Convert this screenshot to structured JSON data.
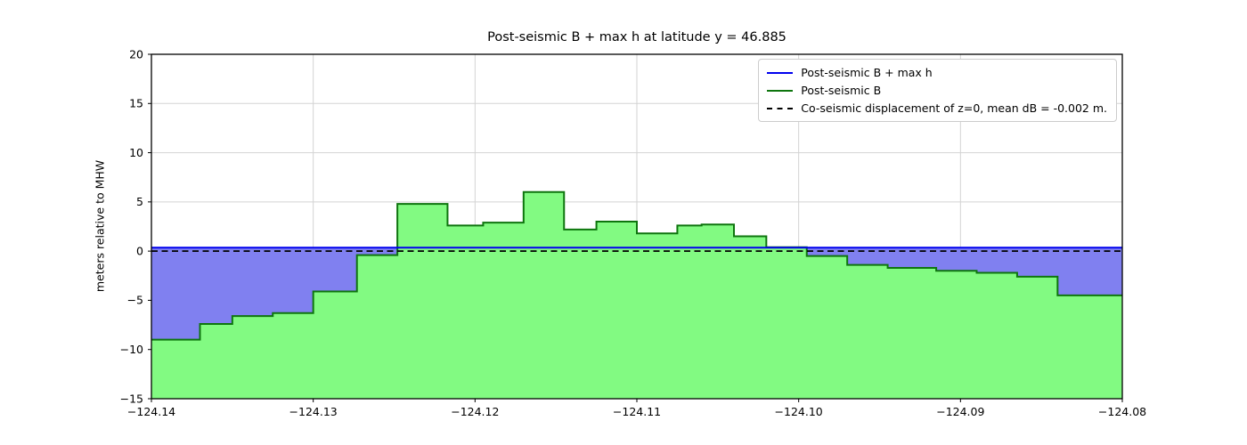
{
  "chart_data": {
    "type": "area",
    "title": "Post-seismic B + max h at latitude y = 46.885",
    "xlabel": "",
    "ylabel": "meters relative to MHW",
    "xlim": [
      -124.14,
      -124.08
    ],
    "ylim": [
      -15,
      20
    ],
    "grid": true,
    "legend_position": "upper right",
    "x_ticks": [
      -124.14,
      -124.13,
      -124.12,
      -124.11,
      -124.1,
      -124.09,
      -124.08
    ],
    "x_tick_labels": [
      "−124.14",
      "−124.13",
      "−124.12",
      "−124.11",
      "−124.10",
      "−124.09",
      "−124.08"
    ],
    "y_ticks": [
      20,
      15,
      10,
      5,
      0,
      -5,
      -10,
      -15
    ],
    "y_tick_labels": [
      "20",
      "15",
      "10",
      "5",
      "0",
      "−5",
      "−10",
      "−15"
    ],
    "colors": {
      "blue_line": "#0000ee",
      "blue_fill": "#8080f0",
      "green_line": "#0e750e",
      "green_fill": "#82fa82",
      "dashed_line": "#000000",
      "grid": "#d3d3d3",
      "spine": "#000000"
    },
    "series": [
      {
        "name": "Post-seismic B + max h",
        "type": "hline",
        "value": 0.35
      },
      {
        "name": "Post-seismic B",
        "type": "steps",
        "segments": [
          [
            -124.14,
            -124.137,
            -9.0
          ],
          [
            -124.137,
            -124.135,
            -7.4
          ],
          [
            -124.135,
            -124.1325,
            -6.6
          ],
          [
            -124.1325,
            -124.13,
            -6.3
          ],
          [
            -124.13,
            -124.1273,
            -4.1
          ],
          [
            -124.1273,
            -124.1248,
            -0.4
          ],
          [
            -124.1248,
            -124.1217,
            4.8
          ],
          [
            -124.1217,
            -124.1195,
            2.6
          ],
          [
            -124.1195,
            -124.117,
            2.9
          ],
          [
            -124.117,
            -124.1145,
            6.0
          ],
          [
            -124.1145,
            -124.1125,
            2.2
          ],
          [
            -124.1125,
            -124.11,
            3.0
          ],
          [
            -124.11,
            -124.1075,
            1.8
          ],
          [
            -124.1075,
            -124.106,
            2.6
          ],
          [
            -124.106,
            -124.104,
            2.7
          ],
          [
            -124.104,
            -124.102,
            1.5
          ],
          [
            -124.102,
            -124.0995,
            0.4
          ],
          [
            -124.0995,
            -124.097,
            -0.5
          ],
          [
            -124.097,
            -124.0945,
            -1.4
          ],
          [
            -124.0945,
            -124.0915,
            -1.7
          ],
          [
            -124.0915,
            -124.089,
            -2.0
          ],
          [
            -124.089,
            -124.0865,
            -2.2
          ],
          [
            -124.0865,
            -124.084,
            -2.6
          ],
          [
            -124.084,
            -124.08,
            -4.5
          ]
        ]
      },
      {
        "name": "Co-seismic displacement of z=0",
        "type": "hline-dashed",
        "value": 0.0
      }
    ],
    "legend": [
      {
        "label": "Post-seismic B + max h",
        "color": "#0000ee",
        "dash": false
      },
      {
        "label": "Post-seismic B",
        "color": "#0e750e",
        "dash": false
      },
      {
        "label": "Co-seismic displacement of z=0, mean dB = -0.002 m.",
        "color": "#000000",
        "dash": true
      }
    ]
  }
}
